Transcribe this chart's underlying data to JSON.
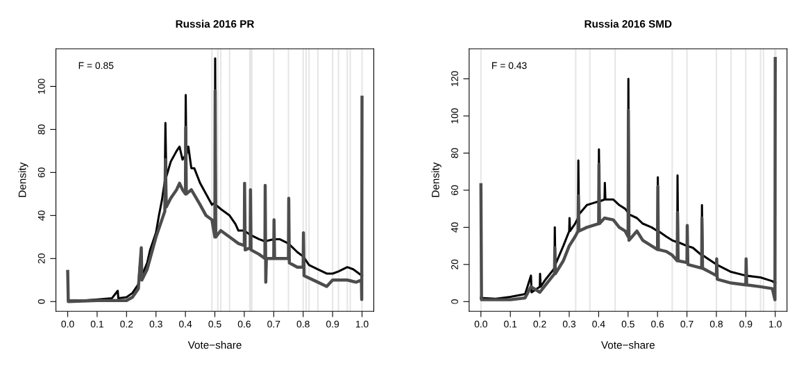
{
  "chart_data": [
    {
      "type": "line",
      "title": "Russia 2016 PR",
      "xlabel": "Vote−share",
      "ylabel": "Density",
      "annotations": [
        "F = 0.85"
      ],
      "xlim": [
        -0.04,
        1.04
      ],
      "ylim": [
        -4.5,
        117.5
      ],
      "xticks": [
        {
          "value": 0,
          "label": "0.0"
        },
        {
          "value": 0.1,
          "label": "0.1"
        },
        {
          "value": 0.2,
          "label": "0.2"
        },
        {
          "value": 0.3,
          "label": "0.3"
        },
        {
          "value": 0.4,
          "label": "0.4"
        },
        {
          "value": 0.5,
          "label": "0.5"
        },
        {
          "value": 0.6,
          "label": "0.6"
        },
        {
          "value": 0.7,
          "label": "0.7"
        },
        {
          "value": 0.8,
          "label": "0.8"
        },
        {
          "value": 0.9,
          "label": "0.9"
        },
        {
          "value": 1,
          "label": "1.0"
        }
      ],
      "yticks": [
        0,
        20,
        40,
        60,
        80,
        100
      ],
      "grid": false,
      "marker": "none",
      "line_style": "solid",
      "ref_lines": [
        {
          "axis": "x",
          "value": 0.49,
          "color": "#e6e6e6"
        },
        {
          "axis": "x",
          "value": 0.51,
          "color": "#e6e6e6"
        },
        {
          "axis": "x",
          "value": 0.52,
          "color": "#e6e6e6"
        },
        {
          "axis": "x",
          "value": 0.55,
          "color": "#e6e6e6"
        },
        {
          "axis": "x",
          "value": 0.7,
          "color": "#e6e6e6"
        },
        {
          "axis": "x",
          "value": 0.75,
          "color": "#e6e6e6"
        },
        {
          "axis": "x",
          "value": 0.8,
          "color": "#e6e6e6"
        },
        {
          "axis": "x",
          "value": 0.81,
          "color": "#e6e6e6"
        },
        {
          "axis": "x",
          "value": 0.82,
          "color": "#e6e6e6"
        },
        {
          "axis": "x",
          "value": 0.85,
          "color": "#e6e6e6"
        },
        {
          "axis": "x",
          "value": 0.9,
          "color": "#e6e6e6"
        },
        {
          "axis": "x",
          "value": 0.92,
          "color": "#e6e6e6"
        },
        {
          "axis": "x",
          "value": 0.95,
          "color": "#e6e6e6"
        },
        {
          "axis": "x",
          "value": 0.96,
          "color": "#e6e6e6"
        },
        {
          "axis": "x",
          "value": 1.0,
          "color": "#e6e6e6"
        }
      ],
      "bands": [
        {
          "axis": "x",
          "from": 0.616,
          "to": 0.628,
          "color": "#e6e6e6"
        }
      ],
      "series": [
        {
          "color": "#000000",
          "x": [
            0.0,
            0.002,
            0.05,
            0.1,
            0.15,
            0.17,
            0.172,
            0.2,
            0.22,
            0.24,
            0.25,
            0.252,
            0.27,
            0.28,
            0.3,
            0.31,
            0.32,
            0.33,
            0.332,
            0.335,
            0.35,
            0.37,
            0.38,
            0.39,
            0.4,
            0.401,
            0.403,
            0.41,
            0.42,
            0.43,
            0.45,
            0.47,
            0.49,
            0.5,
            0.501,
            0.503,
            0.52,
            0.55,
            0.57,
            0.58,
            0.6,
            0.61,
            0.62,
            0.65,
            0.67,
            0.7,
            0.72,
            0.75,
            0.78,
            0.8,
            0.82,
            0.85,
            0.88,
            0.9,
            0.92,
            0.95,
            0.97,
            0.99,
            1.0
          ],
          "values": [
            14,
            0.5,
            0.5,
            1,
            1.5,
            5,
            1.5,
            2,
            4,
            8,
            25,
            12,
            18,
            24,
            32,
            40,
            47,
            56,
            83,
            58,
            65,
            70,
            72,
            66,
            68,
            96,
            68,
            72,
            62,
            62,
            55,
            50,
            45,
            46,
            113,
            45,
            43,
            40,
            36,
            33,
            33,
            32,
            31,
            29,
            28,
            29,
            29,
            27,
            23,
            21,
            17,
            15,
            13,
            13,
            14,
            16,
            15,
            13,
            12
          ]
        },
        {
          "color": "#4d4d4d",
          "x": [
            0.0,
            0.002,
            0.1,
            0.2,
            0.22,
            0.24,
            0.25,
            0.252,
            0.27,
            0.3,
            0.32,
            0.33,
            0.332,
            0.335,
            0.35,
            0.37,
            0.38,
            0.39,
            0.4,
            0.401,
            0.403,
            0.42,
            0.45,
            0.47,
            0.49,
            0.5,
            0.501,
            0.503,
            0.52,
            0.55,
            0.58,
            0.6,
            0.601,
            0.603,
            0.62,
            0.621,
            0.623,
            0.65,
            0.67,
            0.671,
            0.673,
            0.675,
            0.7,
            0.701,
            0.703,
            0.75,
            0.751,
            0.753,
            0.78,
            0.8,
            0.801,
            0.803,
            0.85,
            0.88,
            0.9,
            0.95,
            0.98,
            0.998,
            0.999,
            1.0
          ],
          "values": [
            14,
            0,
            0.5,
            0.5,
            2,
            6,
            25,
            10,
            15,
            30,
            38,
            42,
            66,
            44,
            48,
            52,
            55,
            52,
            50,
            81,
            50,
            52,
            45,
            40,
            38,
            30,
            98,
            30,
            33,
            30,
            27,
            26,
            55,
            24,
            25,
            52,
            24,
            22,
            20,
            54,
            9,
            20,
            20,
            38,
            20,
            20,
            48,
            18,
            16,
            16,
            32,
            12,
            9,
            7,
            10,
            10,
            9,
            10,
            1,
            95
          ]
        }
      ]
    },
    {
      "type": "line",
      "title": "Russia 2016 SMD",
      "xlabel": "Vote−share",
      "ylabel": "Density",
      "annotations": [
        "F = 0.43"
      ],
      "xlim": [
        -0.04,
        1.04
      ],
      "ylim": [
        -5.2,
        136.2
      ],
      "xticks": [
        {
          "value": 0,
          "label": "0.0"
        },
        {
          "value": 0.1,
          "label": "0.1"
        },
        {
          "value": 0.2,
          "label": "0.2"
        },
        {
          "value": 0.3,
          "label": "0.3"
        },
        {
          "value": 0.4,
          "label": "0.4"
        },
        {
          "value": 0.5,
          "label": "0.5"
        },
        {
          "value": 0.6,
          "label": "0.6"
        },
        {
          "value": 0.7,
          "label": "0.7"
        },
        {
          "value": 0.8,
          "label": "0.8"
        },
        {
          "value": 0.9,
          "label": "0.9"
        },
        {
          "value": 1,
          "label": "1.0"
        }
      ],
      "yticks": [
        0,
        20,
        40,
        60,
        80,
        100,
        120
      ],
      "grid": false,
      "marker": "none",
      "line_style": "solid",
      "ref_lines": [
        {
          "axis": "x",
          "value": 0.0,
          "color": "#e6e6e6"
        },
        {
          "axis": "x",
          "value": 0.322,
          "color": "#e6e6e6"
        },
        {
          "axis": "x",
          "value": 0.37,
          "color": "#e6e6e6"
        },
        {
          "axis": "x",
          "value": 0.456,
          "color": "#e6e6e6"
        },
        {
          "axis": "x",
          "value": 0.65,
          "color": "#e6e6e6"
        },
        {
          "axis": "x",
          "value": 0.7,
          "color": "#e6e6e6"
        },
        {
          "axis": "x",
          "value": 0.8,
          "color": "#e6e6e6"
        },
        {
          "axis": "x",
          "value": 0.85,
          "color": "#e6e6e6"
        },
        {
          "axis": "x",
          "value": 0.9,
          "color": "#e6e6e6"
        },
        {
          "axis": "x",
          "value": 0.95,
          "color": "#e6e6e6"
        },
        {
          "axis": "x",
          "value": 0.96,
          "color": "#e6e6e6"
        }
      ],
      "bands": [
        {
          "axis": "x",
          "from": 0.996,
          "to": 1.004,
          "color": "#e6e6e6"
        }
      ],
      "series": [
        {
          "color": "#000000",
          "x": [
            0.0,
            0.05,
            0.1,
            0.15,
            0.17,
            0.172,
            0.2,
            0.201,
            0.203,
            0.22,
            0.25,
            0.251,
            0.253,
            0.28,
            0.3,
            0.301,
            0.303,
            0.32,
            0.33,
            0.331,
            0.333,
            0.36,
            0.38,
            0.4,
            0.401,
            0.403,
            0.42,
            0.421,
            0.423,
            0.45,
            0.47,
            0.49,
            0.5,
            0.501,
            0.503,
            0.53,
            0.55,
            0.58,
            0.6,
            0.601,
            0.603,
            0.63,
            0.65,
            0.667,
            0.668,
            0.67,
            0.7,
            0.72,
            0.75,
            0.751,
            0.753,
            0.8,
            0.85,
            0.9,
            0.95,
            0.99,
            1.0
          ],
          "values": [
            2,
            1.5,
            2.5,
            4,
            14,
            5,
            8,
            15,
            8,
            12,
            18,
            40,
            20,
            30,
            38,
            45,
            38,
            42,
            45,
            76,
            47,
            52,
            53,
            54,
            82,
            54,
            55,
            64,
            55,
            55,
            52,
            50,
            48,
            120,
            47,
            45,
            42,
            40,
            38,
            67,
            38,
            35,
            33,
            32,
            68,
            32,
            30,
            29,
            25,
            52,
            25,
            20,
            16,
            14,
            13,
            11,
            10
          ]
        },
        {
          "color": "#4d4d4d",
          "x": [
            0.0,
            0.002,
            0.1,
            0.15,
            0.17,
            0.2,
            0.25,
            0.251,
            0.253,
            0.28,
            0.3,
            0.32,
            0.33,
            0.331,
            0.333,
            0.36,
            0.4,
            0.401,
            0.403,
            0.42,
            0.45,
            0.47,
            0.49,
            0.5,
            0.501,
            0.503,
            0.53,
            0.55,
            0.58,
            0.6,
            0.601,
            0.603,
            0.63,
            0.65,
            0.667,
            0.668,
            0.67,
            0.7,
            0.701,
            0.703,
            0.75,
            0.751,
            0.753,
            0.8,
            0.801,
            0.803,
            0.85,
            0.9,
            0.901,
            0.903,
            0.95,
            0.99,
            0.999,
            1.0
          ],
          "values": [
            63,
            1,
            1,
            2,
            8,
            5,
            15,
            29,
            15,
            22,
            30,
            35,
            38,
            57,
            38,
            40,
            42,
            74,
            42,
            45,
            44,
            40,
            38,
            35,
            103,
            33,
            38,
            33,
            30,
            28,
            62,
            28,
            27,
            25,
            22,
            48,
            22,
            21,
            41,
            20,
            18,
            45,
            18,
            14,
            23,
            12,
            10,
            9,
            23,
            9,
            8,
            7,
            1,
            131
          ]
        }
      ]
    }
  ]
}
